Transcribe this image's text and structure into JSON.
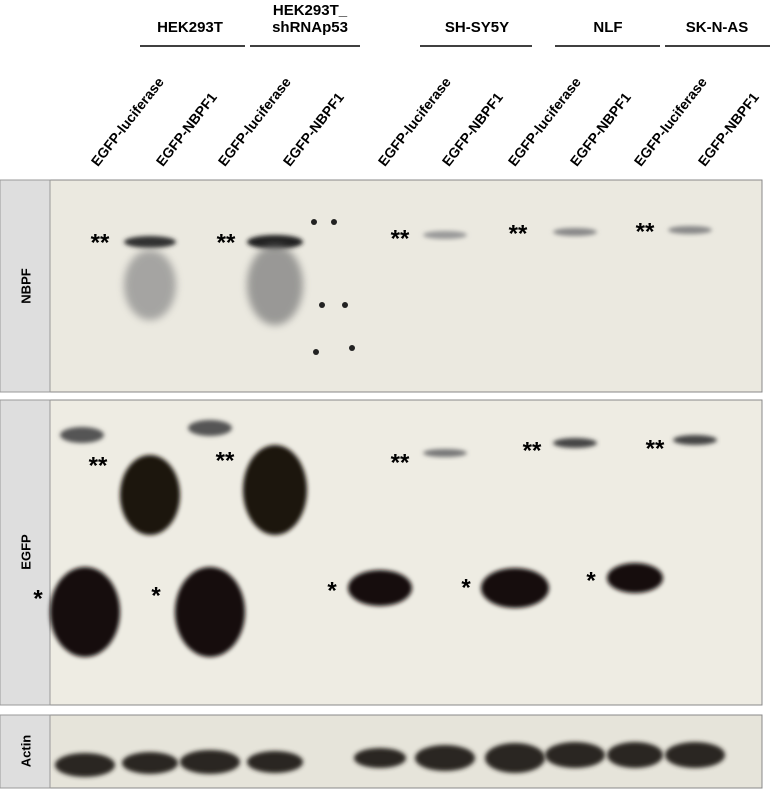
{
  "header": {
    "groups": [
      {
        "lines": [
          "HEK293T"
        ]
      },
      {
        "lines": [
          "HEK293T_",
          "shRNAp53"
        ]
      },
      {
        "lines": [
          "SH-SY5Y"
        ]
      },
      {
        "lines": [
          "NLF"
        ]
      },
      {
        "lines": [
          "SK-N-AS"
        ]
      }
    ]
  },
  "lanes": [
    "EGFP-luciferase",
    "EGFP-NBPF1",
    "EGFP-luciferase",
    "EGFP-NBPF1",
    "EGFP-luciferase",
    "EGFP-NBPF1",
    "EGFP-luciferase",
    "EGFP-NBPF1",
    "EGFP-luciferase",
    "EGFP-NBPF1"
  ],
  "panels": [
    {
      "label": "NBPF",
      "markers": [
        "**",
        "**",
        "**",
        "**",
        "**"
      ]
    },
    {
      "label": "EGFP",
      "markers": [
        "**",
        "**",
        "**",
        "**",
        "**",
        "*",
        "*",
        "*",
        "*",
        "*"
      ]
    },
    {
      "label": "Actin",
      "markers": []
    }
  ]
}
